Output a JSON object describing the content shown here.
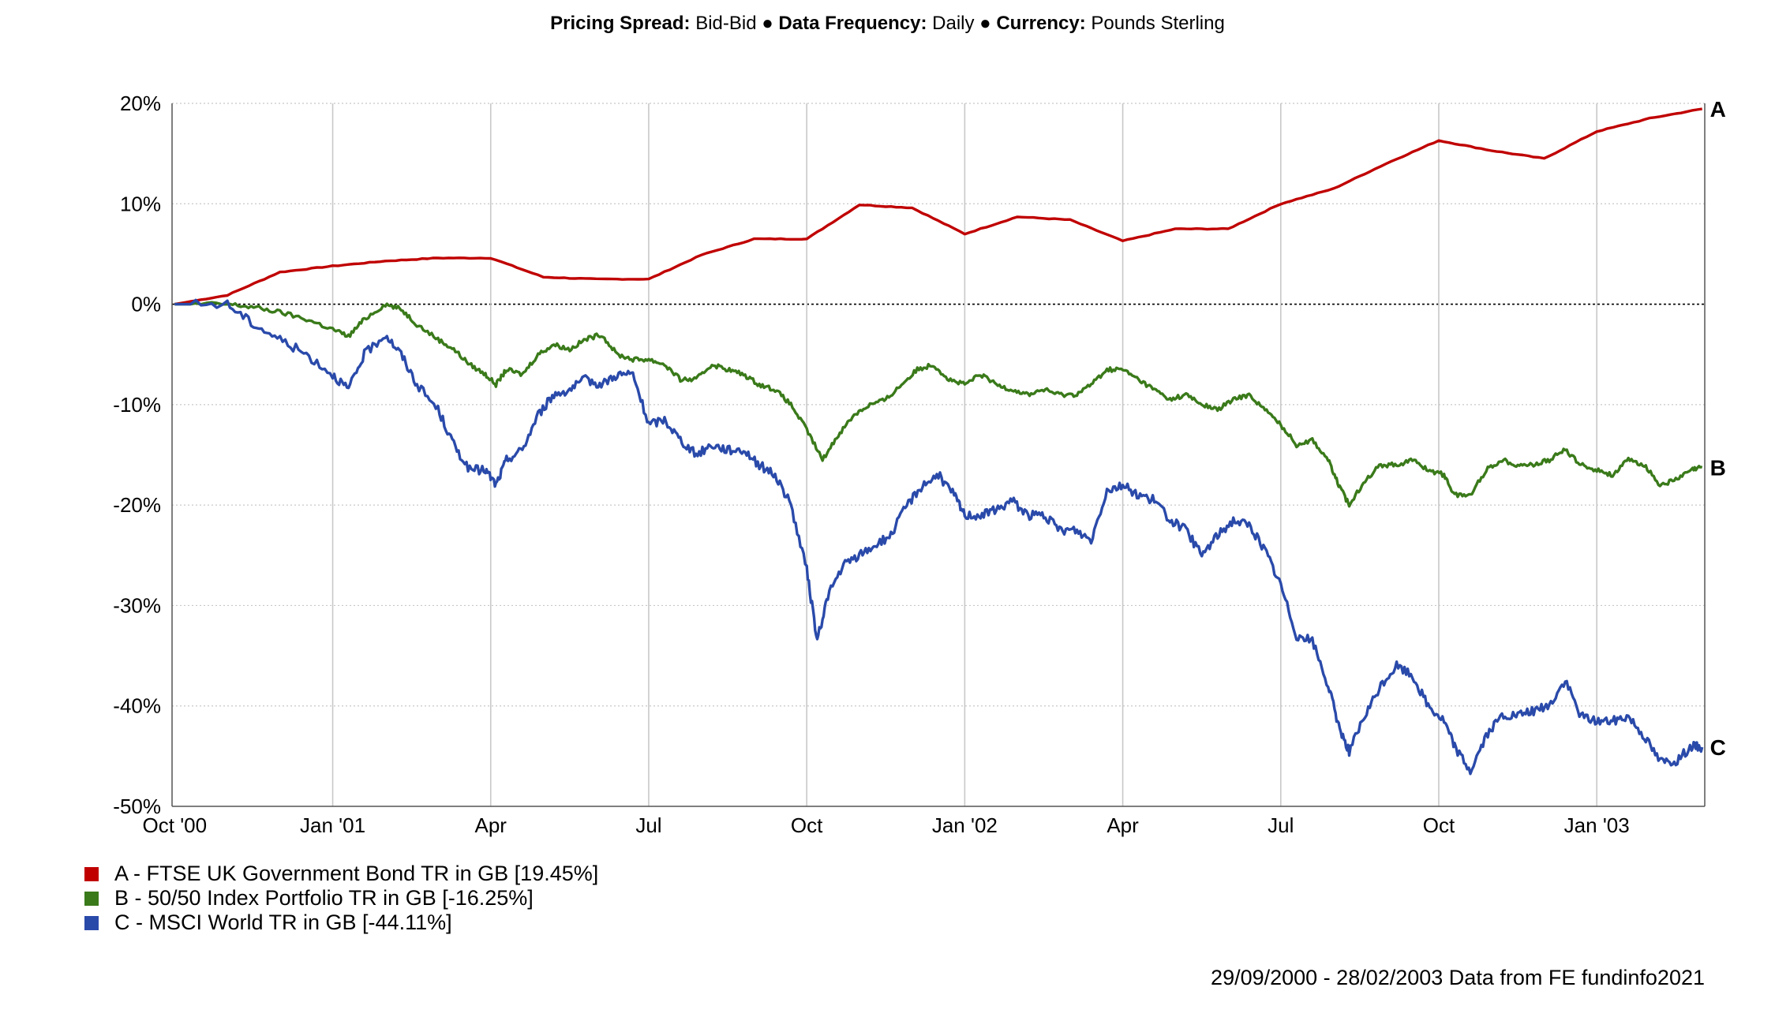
{
  "header": {
    "pricing_label": "Pricing Spread:",
    "pricing_value": "Bid-Bid",
    "bullet1": "●",
    "frequency_label": "Data Frequency:",
    "frequency_value": "Daily",
    "bullet2": "●",
    "currency_label": "Currency:",
    "currency_value": "Pounds Sterling"
  },
  "footer": "29/09/2000 - 28/02/2003 Data from FE fundinfo2021",
  "colors": {
    "A": "#c00000",
    "B": "#3a7a1a",
    "C": "#2a4aaa",
    "grid": "#c8c8c8",
    "zero": "#000000"
  },
  "chart_data": {
    "type": "line",
    "x_unit": "months since Oct 2000",
    "x_ticks": [
      {
        "x": 0,
        "label": "Oct '00"
      },
      {
        "x": 3,
        "label": "Jan '01"
      },
      {
        "x": 6,
        "label": "Apr"
      },
      {
        "x": 9,
        "label": "Jul"
      },
      {
        "x": 12,
        "label": "Oct"
      },
      {
        "x": 15,
        "label": "Jan '02"
      },
      {
        "x": 18,
        "label": "Apr"
      },
      {
        "x": 21,
        "label": "Jul"
      },
      {
        "x": 24,
        "label": "Oct"
      },
      {
        "x": 27,
        "label": "Jan '03"
      }
    ],
    "xlim": [
      -0.05,
      29.05
    ],
    "ylim": [
      -50,
      20
    ],
    "y_ticks": [
      {
        "v": 20,
        "label": "20%"
      },
      {
        "v": 10,
        "label": "10%"
      },
      {
        "v": 0,
        "label": "0%"
      },
      {
        "v": -10,
        "label": "-10%"
      },
      {
        "v": -20,
        "label": "-20%"
      },
      {
        "v": -30,
        "label": "-30%"
      },
      {
        "v": -40,
        "label": "-40%"
      },
      {
        "v": -50,
        "label": "-50%"
      }
    ],
    "grid": true,
    "legend_position": "bottom-left",
    "series": [
      {
        "key": "A",
        "name": "A - FTSE UK Government Bond TR in GB [19.45%]",
        "end_label": "A",
        "points": [
          [
            0,
            0
          ],
          [
            1,
            0.9
          ],
          [
            2,
            3.2
          ],
          [
            3,
            3.8
          ],
          [
            4,
            4.3
          ],
          [
            5,
            4.6
          ],
          [
            6,
            4.6
          ],
          [
            7,
            2.7
          ],
          [
            8,
            2.5
          ],
          [
            9,
            2.5
          ],
          [
            10,
            4.9
          ],
          [
            11,
            6.5
          ],
          [
            12,
            6.5
          ],
          [
            13,
            9.9
          ],
          [
            14,
            9.6
          ],
          [
            15,
            7.0
          ],
          [
            16,
            8.7
          ],
          [
            17,
            8.4
          ],
          [
            18,
            6.3
          ],
          [
            19,
            7.5
          ],
          [
            20,
            7.5
          ],
          [
            21,
            10.0
          ],
          [
            22,
            11.5
          ],
          [
            23,
            14.0
          ],
          [
            24,
            16.3
          ],
          [
            25,
            15.3
          ],
          [
            26,
            14.5
          ],
          [
            27,
            17.2
          ],
          [
            28,
            18.5
          ],
          [
            29,
            19.45
          ]
        ]
      },
      {
        "key": "B",
        "name": "B - 50/50 Index Portfolio TR in GB [-16.25%]",
        "end_label": "B",
        "points": [
          [
            0,
            0
          ],
          [
            1,
            0
          ],
          [
            1.5,
            -0.3
          ],
          [
            2,
            -0.8
          ],
          [
            2.5,
            -1.5
          ],
          [
            3,
            -2.5
          ],
          [
            3.3,
            -3.2
          ],
          [
            3.6,
            -1.5
          ],
          [
            4,
            0
          ],
          [
            4.3,
            -0.5
          ],
          [
            4.6,
            -2
          ],
          [
            5,
            -3.5
          ],
          [
            5.3,
            -4.5
          ],
          [
            5.6,
            -6
          ],
          [
            5.9,
            -7
          ],
          [
            6.1,
            -8
          ],
          [
            6.3,
            -6.5
          ],
          [
            6.6,
            -7
          ],
          [
            6.9,
            -5
          ],
          [
            7.2,
            -4
          ],
          [
            7.5,
            -4.5
          ],
          [
            7.8,
            -3.5
          ],
          [
            8.1,
            -3
          ],
          [
            8.4,
            -5
          ],
          [
            8.7,
            -5.5
          ],
          [
            9,
            -5.5
          ],
          [
            9.3,
            -6
          ],
          [
            9.6,
            -7.5
          ],
          [
            9.9,
            -7.5
          ],
          [
            10.2,
            -6
          ],
          [
            10.5,
            -6.5
          ],
          [
            10.8,
            -7
          ],
          [
            11.1,
            -8
          ],
          [
            11.4,
            -8.5
          ],
          [
            11.7,
            -10
          ],
          [
            12,
            -12.5
          ],
          [
            12.3,
            -15.5
          ],
          [
            12.6,
            -13
          ],
          [
            12.9,
            -11
          ],
          [
            13.2,
            -10
          ],
          [
            13.5,
            -9.5
          ],
          [
            13.8,
            -8
          ],
          [
            14.1,
            -6.5
          ],
          [
            14.4,
            -6
          ],
          [
            14.7,
            -7.5
          ],
          [
            15,
            -8
          ],
          [
            15.3,
            -7
          ],
          [
            15.6,
            -8
          ],
          [
            15.9,
            -8.5
          ],
          [
            16.2,
            -9
          ],
          [
            16.5,
            -8.5
          ],
          [
            16.8,
            -9
          ],
          [
            17.1,
            -9
          ],
          [
            17.4,
            -8
          ],
          [
            17.7,
            -6.5
          ],
          [
            18,
            -6.5
          ],
          [
            18.3,
            -7.5
          ],
          [
            18.6,
            -8.5
          ],
          [
            18.9,
            -9.5
          ],
          [
            19.2,
            -9
          ],
          [
            19.5,
            -10
          ],
          [
            19.8,
            -10.5
          ],
          [
            20.1,
            -9.5
          ],
          [
            20.4,
            -9
          ],
          [
            20.7,
            -10.5
          ],
          [
            21,
            -12
          ],
          [
            21.3,
            -14
          ],
          [
            21.6,
            -13.5
          ],
          [
            21.9,
            -15.5
          ],
          [
            22.1,
            -18
          ],
          [
            22.3,
            -20
          ],
          [
            22.6,
            -17.5
          ],
          [
            22.9,
            -16
          ],
          [
            23.2,
            -16
          ],
          [
            23.5,
            -15.5
          ],
          [
            23.8,
            -16.5
          ],
          [
            24.1,
            -17
          ],
          [
            24.3,
            -19
          ],
          [
            24.6,
            -19
          ],
          [
            24.9,
            -16.5
          ],
          [
            25.2,
            -15.5
          ],
          [
            25.5,
            -16
          ],
          [
            25.8,
            -16
          ],
          [
            26.1,
            -15.5
          ],
          [
            26.4,
            -14.5
          ],
          [
            26.7,
            -16
          ],
          [
            27,
            -16.5
          ],
          [
            27.3,
            -17
          ],
          [
            27.6,
            -15.5
          ],
          [
            27.9,
            -16
          ],
          [
            28.2,
            -18
          ],
          [
            28.5,
            -17.5
          ],
          [
            28.8,
            -16.5
          ],
          [
            29,
            -16.25
          ]
        ]
      },
      {
        "key": "C",
        "name": "C - MSCI World TR in GB [-44.11%]",
        "end_label": "C",
        "points": [
          [
            0,
            0
          ],
          [
            1,
            0
          ],
          [
            1.5,
            -2
          ],
          [
            2,
            -3.5
          ],
          [
            2.5,
            -5
          ],
          [
            3,
            -7
          ],
          [
            3.3,
            -8.5
          ],
          [
            3.6,
            -5
          ],
          [
            4,
            -3
          ],
          [
            4.3,
            -5
          ],
          [
            4.6,
            -8
          ],
          [
            5,
            -10.5
          ],
          [
            5.3,
            -14
          ],
          [
            5.6,
            -16.5
          ],
          [
            5.9,
            -16.5
          ],
          [
            6.1,
            -18
          ],
          [
            6.3,
            -15.5
          ],
          [
            6.6,
            -14.5
          ],
          [
            6.9,
            -11
          ],
          [
            7.2,
            -9
          ],
          [
            7.5,
            -8.5
          ],
          [
            7.8,
            -7.5
          ],
          [
            8.1,
            -8
          ],
          [
            8.4,
            -7
          ],
          [
            8.7,
            -7
          ],
          [
            9,
            -12
          ],
          [
            9.3,
            -11.5
          ],
          [
            9.6,
            -13.5
          ],
          [
            9.9,
            -15
          ],
          [
            10.2,
            -14
          ],
          [
            10.5,
            -14.5
          ],
          [
            10.8,
            -14.5
          ],
          [
            11.1,
            -16
          ],
          [
            11.4,
            -17
          ],
          [
            11.7,
            -20
          ],
          [
            12,
            -26.5
          ],
          [
            12.2,
            -33.5
          ],
          [
            12.4,
            -29
          ],
          [
            12.7,
            -26
          ],
          [
            13,
            -25
          ],
          [
            13.3,
            -24
          ],
          [
            13.6,
            -23
          ],
          [
            13.9,
            -20
          ],
          [
            14.2,
            -18
          ],
          [
            14.5,
            -17
          ],
          [
            14.8,
            -19
          ],
          [
            15,
            -21
          ],
          [
            15.3,
            -21
          ],
          [
            15.6,
            -20.5
          ],
          [
            15.9,
            -19.5
          ],
          [
            16.2,
            -21
          ],
          [
            16.5,
            -21
          ],
          [
            16.8,
            -22.5
          ],
          [
            17.1,
            -22.5
          ],
          [
            17.4,
            -23.5
          ],
          [
            17.7,
            -18.5
          ],
          [
            18,
            -18
          ],
          [
            18.3,
            -19
          ],
          [
            18.6,
            -19.5
          ],
          [
            18.9,
            -21.5
          ],
          [
            19.2,
            -22.5
          ],
          [
            19.5,
            -25
          ],
          [
            19.8,
            -23
          ],
          [
            20.1,
            -21.5
          ],
          [
            20.4,
            -22
          ],
          [
            20.7,
            -24.5
          ],
          [
            21,
            -28
          ],
          [
            21.3,
            -33
          ],
          [
            21.6,
            -33.5
          ],
          [
            21.9,
            -38
          ],
          [
            22.1,
            -42
          ],
          [
            22.3,
            -44.5
          ],
          [
            22.6,
            -41
          ],
          [
            22.9,
            -38
          ],
          [
            23.2,
            -36
          ],
          [
            23.5,
            -37
          ],
          [
            23.8,
            -40
          ],
          [
            24.1,
            -41.5
          ],
          [
            24.3,
            -44
          ],
          [
            24.6,
            -46.5
          ],
          [
            24.9,
            -43
          ],
          [
            25.2,
            -41
          ],
          [
            25.5,
            -41
          ],
          [
            25.8,
            -40.5
          ],
          [
            26.1,
            -40
          ],
          [
            26.4,
            -37.5
          ],
          [
            26.7,
            -41
          ],
          [
            27,
            -41.5
          ],
          [
            27.3,
            -41.5
          ],
          [
            27.6,
            -41
          ],
          [
            27.9,
            -43
          ],
          [
            28.2,
            -45.5
          ],
          [
            28.5,
            -45.5
          ],
          [
            28.8,
            -44
          ],
          [
            29,
            -44.11
          ]
        ]
      }
    ]
  }
}
